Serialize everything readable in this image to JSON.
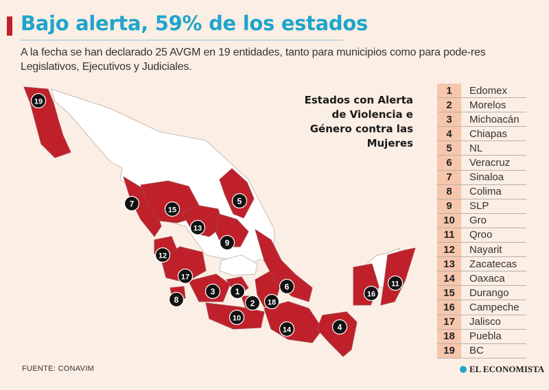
{
  "header": {
    "title": "Bajo alerta, 59% de los estados",
    "subtitle": "A la fecha se han declarado 25 AVGM en 19 entidades, tanto para municipios como para pode-res Legislativos, Ejecutivos y Judiciales."
  },
  "legend": {
    "heading": "Estados con Alerta\nde Violencia e\nGénero contra las\nMujeres",
    "states": [
      {
        "num": "1",
        "name": "Edomex"
      },
      {
        "num": "2",
        "name": "Morelos"
      },
      {
        "num": "3",
        "name": "Michoacán"
      },
      {
        "num": "4",
        "name": "Chiapas"
      },
      {
        "num": "5",
        "name": "NL"
      },
      {
        "num": "6",
        "name": "Veracruz"
      },
      {
        "num": "7",
        "name": "Sinaloa"
      },
      {
        "num": "8",
        "name": "Colima"
      },
      {
        "num": "9",
        "name": "SLP"
      },
      {
        "num": "10",
        "name": "Gro"
      },
      {
        "num": "11",
        "name": "Qroo"
      },
      {
        "num": "12",
        "name": "Nayarit"
      },
      {
        "num": "13",
        "name": "Zacatecas"
      },
      {
        "num": "14",
        "name": "Oaxaca"
      },
      {
        "num": "15",
        "name": "Durango"
      },
      {
        "num": "16",
        "name": "Campeche"
      },
      {
        "num": "17",
        "name": "Jalisco"
      },
      {
        "num": "18",
        "name": "Puebla"
      },
      {
        "num": "19",
        "name": "BC"
      }
    ]
  },
  "map": {
    "alert_color": "#c0202a",
    "land_color": "#ffffff",
    "marker_color": "#111111",
    "marker_labels": [
      "19",
      "7",
      "15",
      "5",
      "13",
      "9",
      "12",
      "17",
      "3",
      "1",
      "6",
      "8",
      "2",
      "18",
      "10",
      "16",
      "11",
      "14",
      "4"
    ]
  },
  "footer": {
    "source": "FUENTE: CONAVIM",
    "brand": "EL ECONOMISTA"
  }
}
